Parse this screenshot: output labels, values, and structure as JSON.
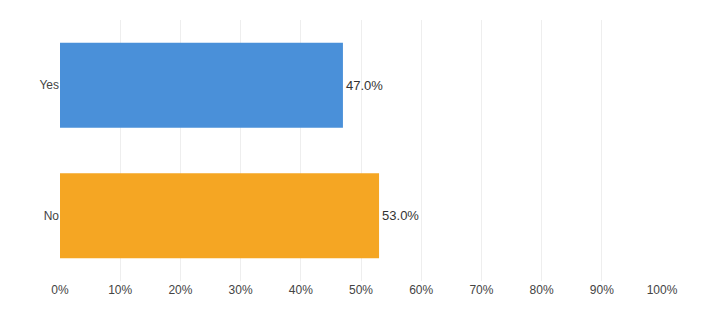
{
  "chart_data": {
    "type": "bar",
    "orientation": "horizontal",
    "categories": [
      "No",
      "Yes"
    ],
    "values": [
      53.0,
      47.0
    ],
    "value_labels": [
      "53.0%",
      "47.0%"
    ],
    "data_labels": true,
    "colors": [
      "#F5A623",
      "#4A90D9"
    ],
    "xlim": [
      0,
      100
    ],
    "xticks": [
      {
        "value": 0,
        "label": "0%"
      },
      {
        "value": 10,
        "label": "10%"
      },
      {
        "value": 20,
        "label": "20%"
      },
      {
        "value": 30,
        "label": "30%"
      },
      {
        "value": 40,
        "label": "40%"
      },
      {
        "value": 50,
        "label": "50%"
      },
      {
        "value": 60,
        "label": "60%"
      },
      {
        "value": 70,
        "label": "70%"
      },
      {
        "value": 80,
        "label": "80%"
      },
      {
        "value": 90,
        "label": "90%"
      },
      {
        "value": 100,
        "label": "100%"
      }
    ],
    "grid": true
  }
}
